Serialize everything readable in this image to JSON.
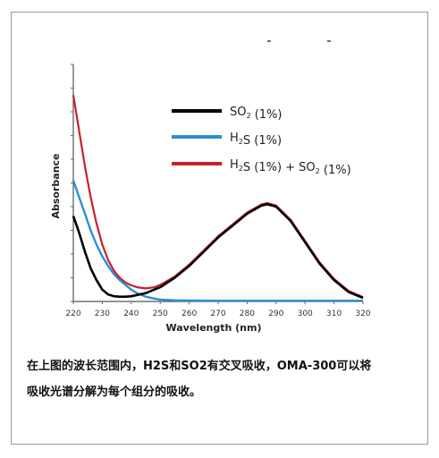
{
  "chart_data": {
    "type": "line",
    "title": "",
    "xlabel": "Wavelength (nm)",
    "ylabel": "Absorbance",
    "xlim": [
      220,
      320
    ],
    "xticks": [
      "220",
      "230",
      "240",
      "250",
      "260",
      "270",
      "280",
      "290",
      "300",
      "310",
      "320"
    ],
    "ylim": [
      0,
      1
    ],
    "grid": false,
    "legend_position": "top-right",
    "series": [
      {
        "name_main": "SO",
        "name_sub": "2",
        "name_tail": " (1%)",
        "color": "#000000",
        "x": [
          220,
          222,
          224,
          226,
          228,
          230,
          232,
          234,
          236,
          238,
          240,
          245,
          250,
          255,
          260,
          265,
          270,
          275,
          280,
          285,
          287,
          290,
          295,
          300,
          305,
          310,
          315,
          320
        ],
        "y": [
          0.36,
          0.29,
          0.21,
          0.14,
          0.09,
          0.05,
          0.03,
          0.022,
          0.02,
          0.02,
          0.022,
          0.035,
          0.06,
          0.1,
          0.15,
          0.21,
          0.27,
          0.32,
          0.37,
          0.405,
          0.41,
          0.4,
          0.34,
          0.25,
          0.16,
          0.09,
          0.04,
          0.015
        ]
      },
      {
        "name_main": "H",
        "name_sub": "2",
        "name_tail": "S (1%)",
        "color": "#2a8fd6",
        "x": [
          220,
          222,
          224,
          226,
          228,
          230,
          232,
          234,
          236,
          238,
          240,
          242,
          245,
          248,
          250,
          255,
          260,
          270,
          280,
          290,
          300,
          310,
          320
        ],
        "y": [
          0.51,
          0.44,
          0.37,
          0.3,
          0.24,
          0.19,
          0.15,
          0.115,
          0.09,
          0.07,
          0.05,
          0.035,
          0.02,
          0.012,
          0.008,
          0.005,
          0.004,
          0.003,
          0.003,
          0.003,
          0.003,
          0.003,
          0.003
        ]
      },
      {
        "name_main": "H",
        "name_sub": "2",
        "name_tail": "S (1%) + SO",
        "name_sub2": "2",
        "name_tail2": " (1%)",
        "color": "#c8202c",
        "x": [
          220,
          222,
          224,
          226,
          228,
          230,
          232,
          234,
          236,
          238,
          240,
          242,
          245,
          248,
          250,
          255,
          260,
          265,
          270,
          275,
          280,
          285,
          287,
          290,
          295,
          300,
          305,
          310,
          315,
          320
        ],
        "y": [
          0.87,
          0.72,
          0.57,
          0.44,
          0.33,
          0.24,
          0.175,
          0.13,
          0.1,
          0.08,
          0.068,
          0.06,
          0.055,
          0.06,
          0.07,
          0.105,
          0.155,
          0.215,
          0.275,
          0.325,
          0.375,
          0.41,
          0.415,
          0.405,
          0.345,
          0.255,
          0.165,
          0.095,
          0.045,
          0.018
        ]
      }
    ]
  },
  "caption": {
    "line1": "在上图的波长范围内，H2S和SO2有交叉吸收，OMA-300可以将",
    "line2": "吸收光谱分解为每个组分的吸收。"
  }
}
